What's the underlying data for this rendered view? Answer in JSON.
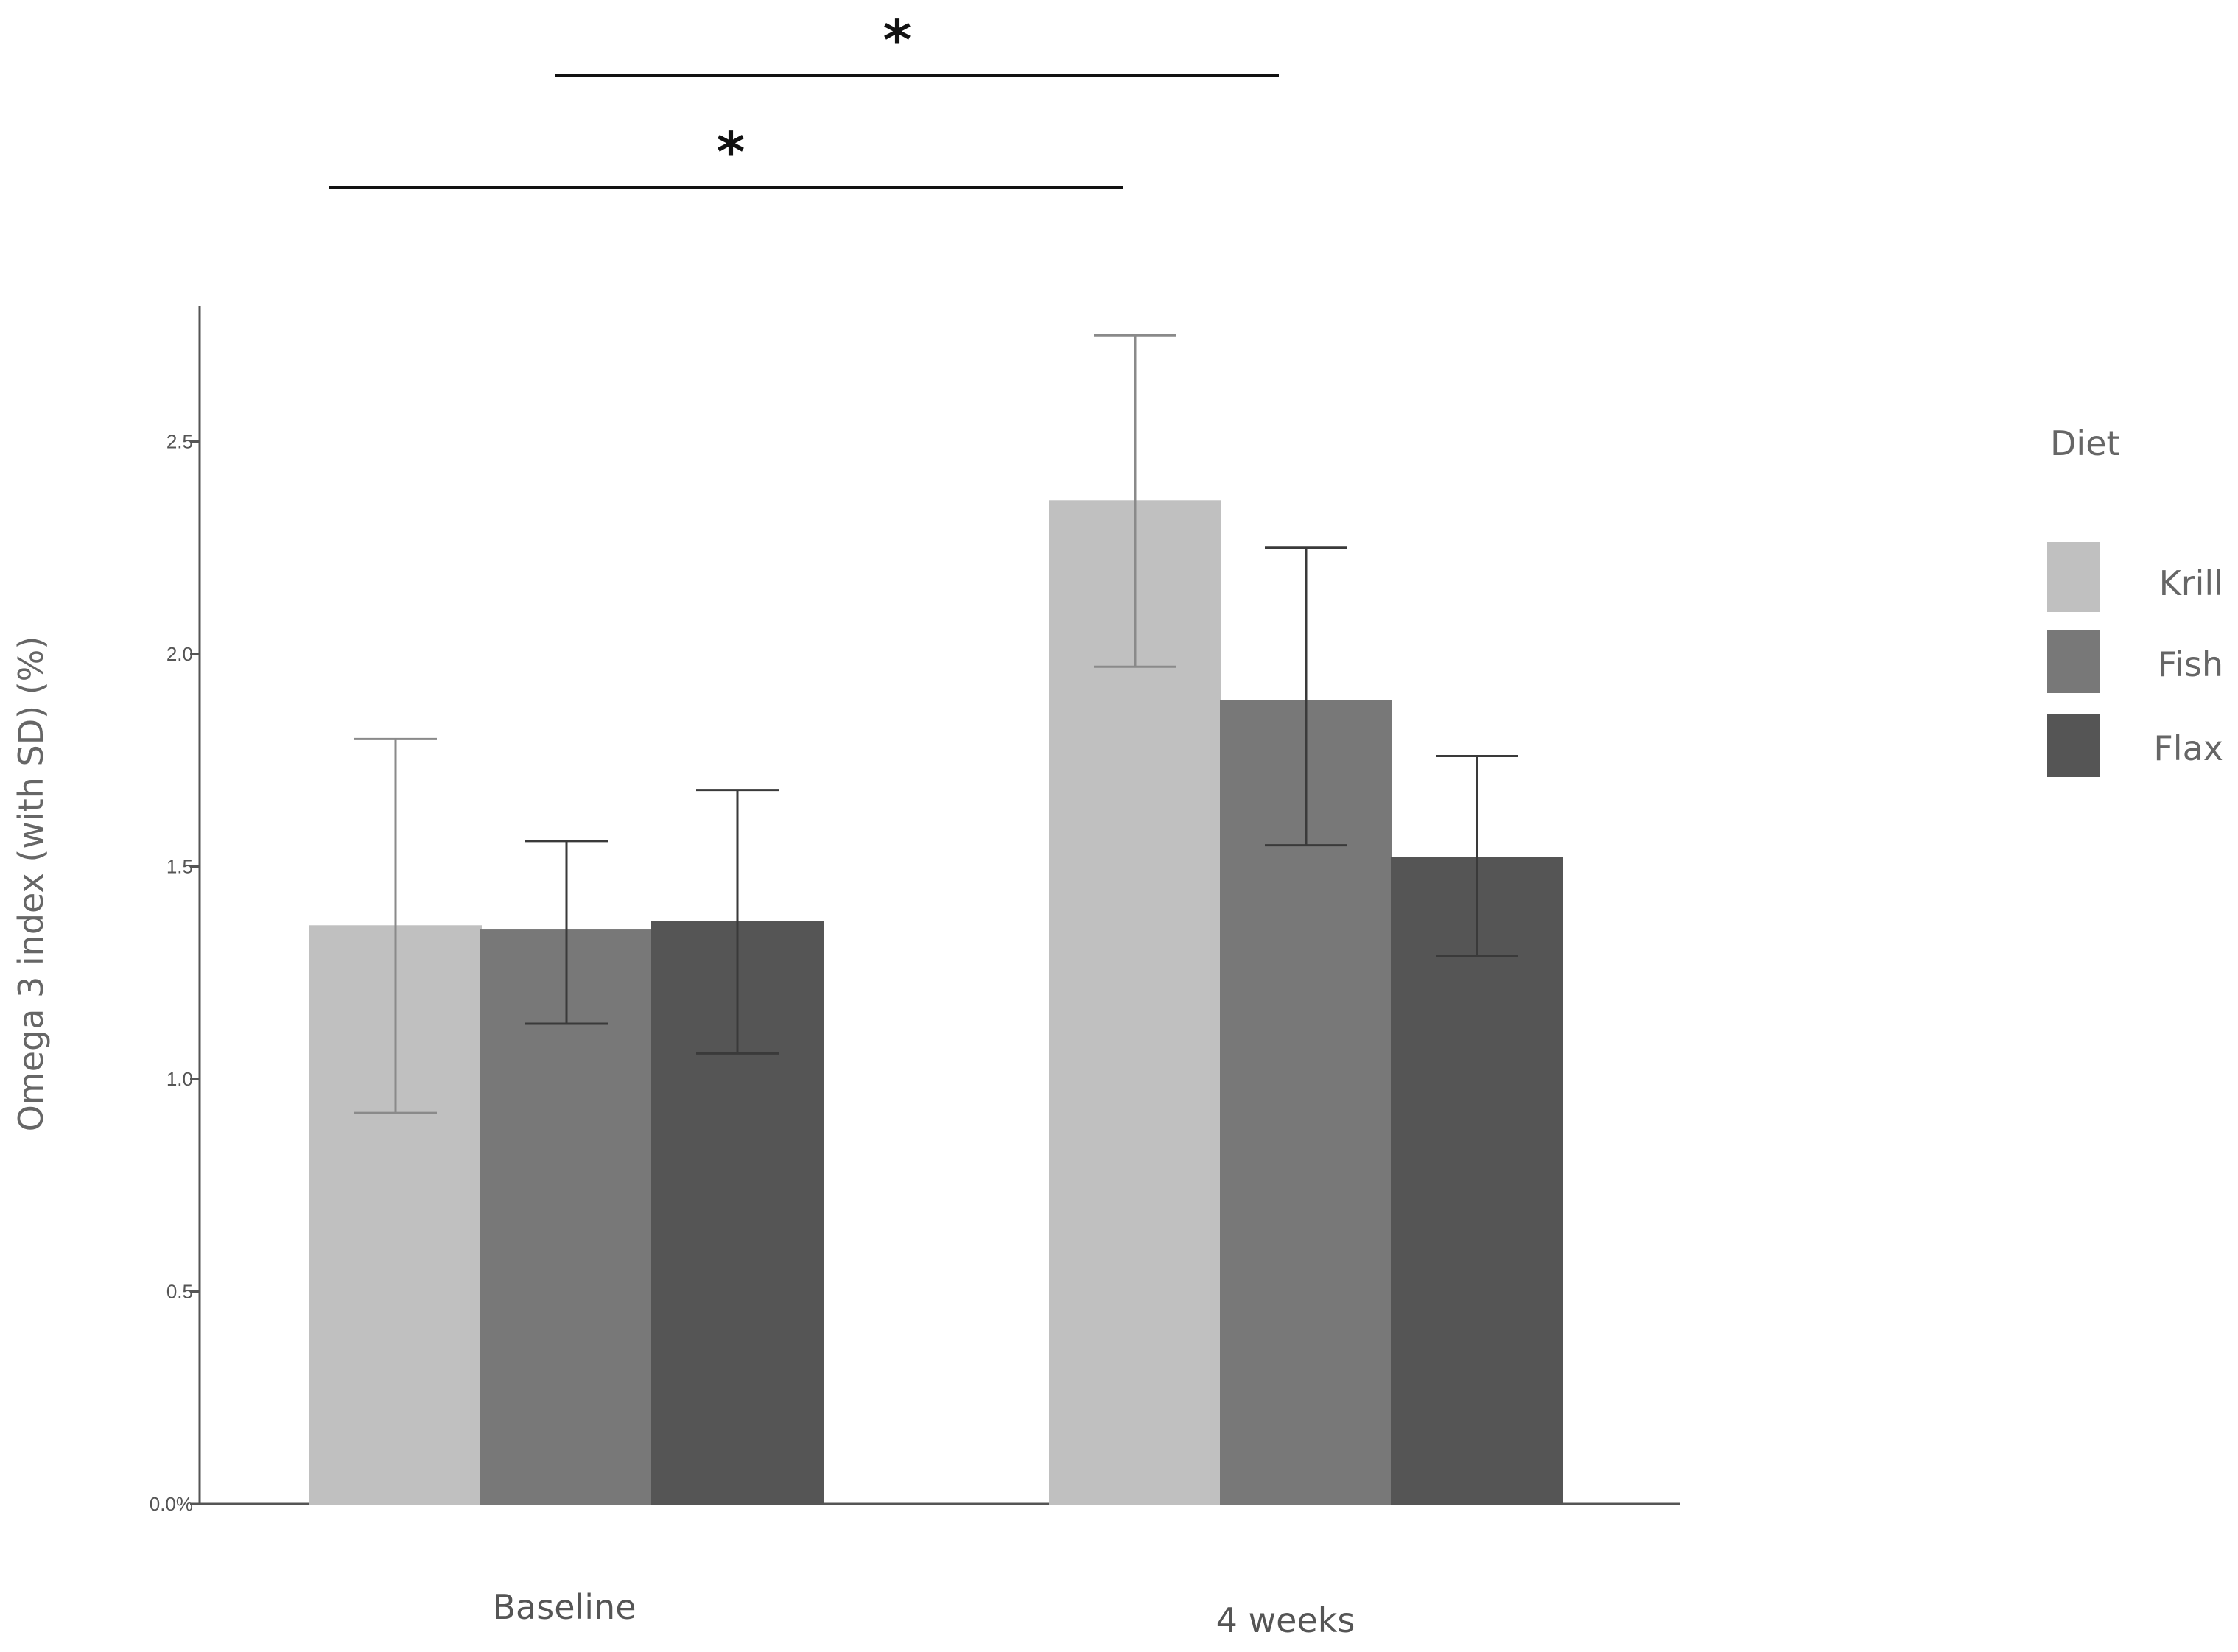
{
  "chart_data": {
    "type": "bar",
    "categories": [
      "Baseline",
      "4 weeks"
    ],
    "ylabel": "Omega 3 index (with SD) (%)",
    "ylim": [
      0,
      2.8
    ],
    "yticks": [
      {
        "value": 0.0,
        "label": "0.0%"
      },
      {
        "value": 0.5,
        "label": "0.5"
      },
      {
        "value": 1.0,
        "label": "1.0"
      },
      {
        "value": 1.5,
        "label": "1.5"
      },
      {
        "value": 2.0,
        "label": "2.0"
      },
      {
        "value": 2.5,
        "label": "2.5"
      }
    ],
    "legend": {
      "title": "Diet",
      "placement": "right"
    },
    "series": [
      {
        "name": "Krill",
        "color": "#c0c0c0",
        "values": [
          1.36,
          2.36
        ],
        "sd_low": [
          0.92,
          1.97
        ],
        "sd_high": [
          1.8,
          2.75
        ]
      },
      {
        "name": "Fish",
        "color": "#787878",
        "values": [
          1.35,
          1.89
        ],
        "sd_low": [
          1.13,
          1.55
        ],
        "sd_high": [
          1.56,
          2.25
        ]
      },
      {
        "name": "Flax",
        "color": "#555555",
        "values": [
          1.37,
          1.52
        ],
        "sd_low": [
          1.06,
          1.29
        ],
        "sd_high": [
          1.68,
          1.76
        ]
      }
    ],
    "annotations": [
      {
        "text": "*",
        "from": "Fish, Baseline",
        "to": "Fish, 4 weeks"
      },
      {
        "text": "*",
        "from": "Krill, Baseline",
        "to": "Krill, 4 weeks"
      }
    ],
    "grid": false
  }
}
